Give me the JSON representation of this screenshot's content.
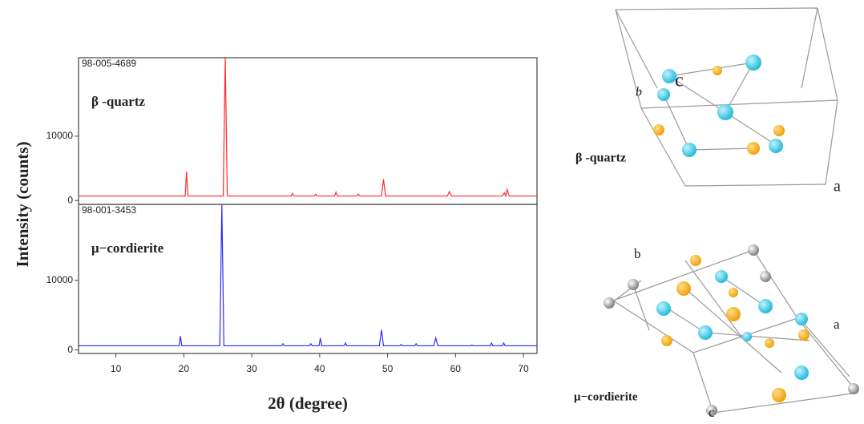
{
  "chart_data": [
    {
      "type": "line",
      "reference": "98-005-4689",
      "phase": "β -quartz",
      "ylabel": "Intensity (counts)",
      "xlim": [
        4.5,
        72
      ],
      "ylim": [
        -600,
        22200
      ],
      "yticks": [
        0,
        10000
      ],
      "x": [
        4.5,
        20.2,
        20.4,
        20.6,
        25.8,
        26.1,
        26.4,
        35.8,
        36.0,
        36.2,
        39.2,
        39.4,
        39.6,
        42.2,
        42.4,
        42.6,
        45.5,
        45.7,
        45.9,
        49.1,
        49.4,
        49.7,
        58.8,
        59.1,
        59.4,
        66.9,
        67.2,
        67.4,
        67.6,
        67.9,
        72
      ],
      "series": [
        {
          "color": "#ff2a2a",
          "values": [
            700,
            700,
            4500,
            700,
            700,
            22200,
            700,
            700,
            1100,
            700,
            700,
            1000,
            700,
            700,
            1300,
            700,
            700,
            1000,
            700,
            700,
            3300,
            700,
            700,
            1400,
            700,
            700,
            1200,
            700,
            1700,
            700,
            700
          ]
        }
      ]
    },
    {
      "type": "line",
      "reference": "98-001-3453",
      "phase": "μ−cordierite",
      "xlabel": "2θ (degree)",
      "xlim": [
        4.5,
        72
      ],
      "xticks": [
        10,
        20,
        30,
        40,
        50,
        60,
        70
      ],
      "ylim": [
        -500,
        20900
      ],
      "yticks": [
        0,
        10000
      ],
      "x": [
        4.5,
        19.3,
        19.5,
        19.7,
        25.3,
        25.6,
        25.9,
        34.4,
        34.6,
        34.8,
        38.5,
        38.7,
        38.9,
        39.9,
        40.1,
        40.3,
        43.6,
        43.8,
        44.0,
        48.8,
        49.1,
        49.4,
        51.8,
        52.0,
        52.2,
        54.0,
        54.2,
        54.4,
        56.8,
        57.1,
        57.4,
        62.2,
        62.4,
        62.6,
        65.1,
        65.3,
        65.5,
        66.9,
        67.1,
        67.3,
        72
      ],
      "series": [
        {
          "color": "#2a2aff",
          "values": [
            600,
            600,
            2000,
            600,
            600,
            20800,
            600,
            600,
            900,
            600,
            600,
            900,
            600,
            600,
            1700,
            600,
            600,
            1000,
            600,
            600,
            2900,
            600,
            600,
            800,
            600,
            600,
            900,
            600,
            600,
            1700,
            600,
            600,
            700,
            600,
            600,
            1000,
            600,
            600,
            1000,
            600,
            600
          ]
        }
      ]
    }
  ],
  "structures": [
    {
      "label": "β -quartz",
      "axes": [
        "a",
        "b",
        "c"
      ]
    },
    {
      "label": "μ−cordierite",
      "axes": [
        "a",
        "b",
        "c"
      ]
    }
  ]
}
